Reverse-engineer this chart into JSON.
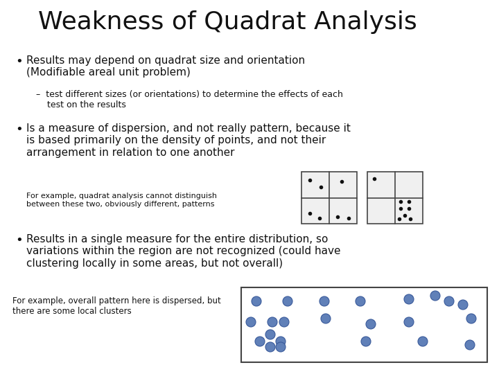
{
  "title": "Weakness of Quadrat Analysis",
  "bg_color": "#ffffff",
  "title_fontsize": 26,
  "bullet1_main": "Results may depend on quadrat size and orientation\n(Modifiable areal unit problem)",
  "bullet1_sub": "–  test different sizes (or orientations) to determine the effects of each\n    test on the results",
  "bullet2_main": "Is a measure of dispersion, and not really pattern, because it\nis based primarily on the density of points, and not their\narrangement in relation to one another",
  "caption1": "For example, quadrat analysis cannot distinguish\nbetween these two, obviously different, patterns",
  "bullet3_main": "Results in a single measure for the entire distribution, so\nvariations within the region are not recognized (could have\nclustering locally in some areas, but not overall)",
  "caption2": "For example, overall pattern here is dispersed, but\nthere are some local clusters",
  "dot_color": "#6080b8",
  "dot_edge_color": "#3a5a9a",
  "small_dot_color": "#222222",
  "text_color": "#111111"
}
